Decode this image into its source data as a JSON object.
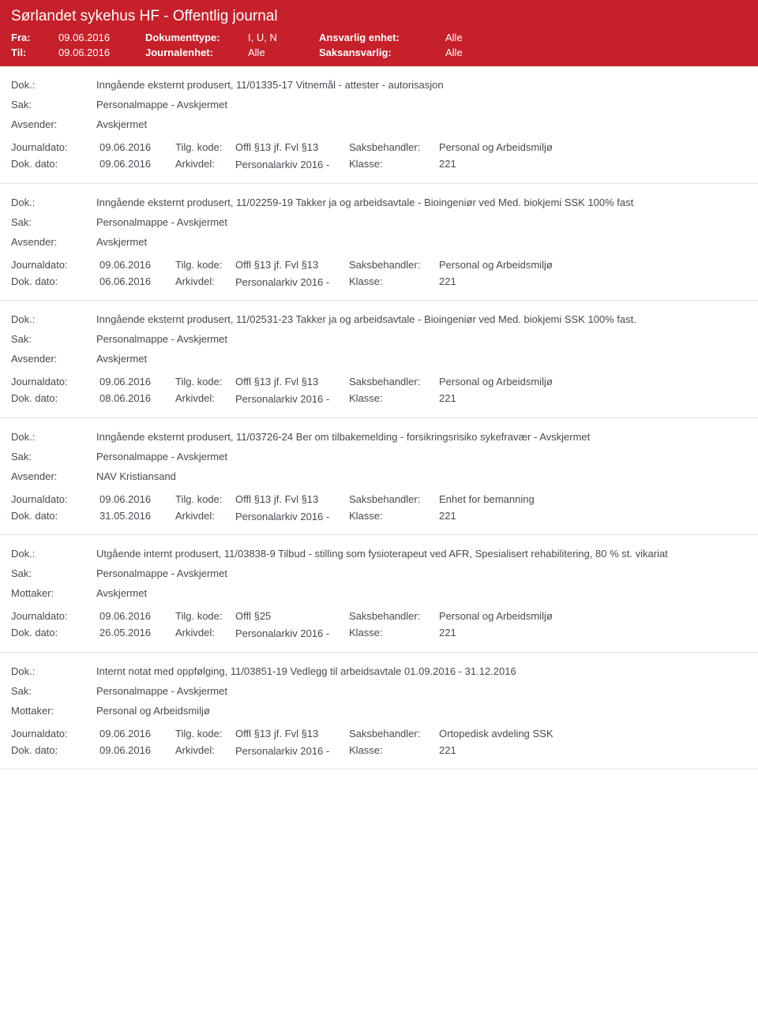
{
  "banner": {
    "title": "Sørlandet sykehus HF - Offentlig journal",
    "fra_label": "Fra:",
    "fra_value": "09.06.2016",
    "til_label": "Til:",
    "til_value": "09.06.2016",
    "doktype_label": "Dokumenttype:",
    "doktype_value": "I, U, N",
    "journalenhet_label": "Journalenhet:",
    "journalenhet_value": "Alle",
    "ansvarlig_label": "Ansvarlig enhet:",
    "ansvarlig_value": "Alle",
    "saksansvarlig_label": "Saksansvarlig:",
    "saksansvarlig_value": "Alle"
  },
  "labels": {
    "dok": "Dok.:",
    "sak": "Sak:",
    "avsender": "Avsender:",
    "mottaker": "Mottaker:",
    "journaldato": "Journaldato:",
    "dokdato": "Dok. dato:",
    "tilgkode": "Tilg. kode:",
    "arkivdel": "Arkivdel:",
    "saksbehandler": "Saksbehandler:",
    "klasse": "Klasse:"
  },
  "entries": [
    {
      "dok": "Inngående eksternt produsert, 11/01335-17 Vitnemål - attester - autorisasjon",
      "sak": "Personalmappe - Avskjermet",
      "party_label": "Avsender:",
      "party_value": "Avskjermet",
      "journaldato": "09.06.2016",
      "tilgkode": "Offl §13 jf. Fvl §13",
      "saksbehandler": "Personal og Arbeidsmiljø",
      "dokdato": "09.06.2016",
      "arkivdel": "Personalarkiv 2016 -",
      "klasse": "221"
    },
    {
      "dok": "Inngående eksternt produsert, 11/02259-19 Takker ja og arbeidsavtale - Bioingeniør ved Med. biokjemi SSK 100% fast",
      "sak": "Personalmappe - Avskjermet",
      "party_label": "Avsender:",
      "party_value": "Avskjermet",
      "journaldato": "09.06.2016",
      "tilgkode": "Offl §13 jf. Fvl §13",
      "saksbehandler": "Personal og Arbeidsmiljø",
      "dokdato": "06.06.2016",
      "arkivdel": "Personalarkiv 2016 -",
      "klasse": "221"
    },
    {
      "dok": "Inngående eksternt produsert, 11/02531-23 Takker ja og arbeidsavtale - Bioingeniør ved Med. biokjemi SSK 100% fast.",
      "sak": "Personalmappe - Avskjermet",
      "party_label": "Avsender:",
      "party_value": "Avskjermet",
      "journaldato": "09.06.2016",
      "tilgkode": "Offl §13 jf. Fvl §13",
      "saksbehandler": "Personal og Arbeidsmiljø",
      "dokdato": "08.06.2016",
      "arkivdel": "Personalarkiv 2016 -",
      "klasse": "221"
    },
    {
      "dok": "Inngående eksternt produsert, 11/03726-24 Ber om tilbakemelding - forsikringsrisiko sykefravær - Avskjermet",
      "sak": "Personalmappe - Avskjermet",
      "party_label": "Avsender:",
      "party_value": "NAV Kristiansand",
      "journaldato": "09.06.2016",
      "tilgkode": "Offl §13 jf. Fvl §13",
      "saksbehandler": "Enhet for bemanning",
      "dokdato": "31.05.2016",
      "arkivdel": "Personalarkiv 2016 -",
      "klasse": "221"
    },
    {
      "dok": "Utgående internt produsert, 11/03838-9 Tilbud - stilling som fysioterapeut ved AFR, Spesialisert rehabilitering, 80 % st. vikariat",
      "sak": "Personalmappe - Avskjermet",
      "party_label": "Mottaker:",
      "party_value": "Avskjermet",
      "journaldato": "09.06.2016",
      "tilgkode": "Offl §25",
      "saksbehandler": "Personal og Arbeidsmiljø",
      "dokdato": "26.05.2016",
      "arkivdel": "Personalarkiv 2016 -",
      "klasse": "221"
    },
    {
      "dok": "Internt notat med oppfølging, 11/03851-19 Vedlegg til arbeidsavtale  01.09.2016 - 31.12.2016",
      "sak": "Personalmappe - Avskjermet",
      "party_label": "Mottaker:",
      "party_value": "Personal og Arbeidsmiljø",
      "journaldato": "09.06.2016",
      "tilgkode": "Offl §13 jf. Fvl §13",
      "saksbehandler": "Ortopedisk avdeling SSK",
      "dokdato": "09.06.2016",
      "arkivdel": "Personalarkiv 2016 -",
      "klasse": "221"
    }
  ]
}
